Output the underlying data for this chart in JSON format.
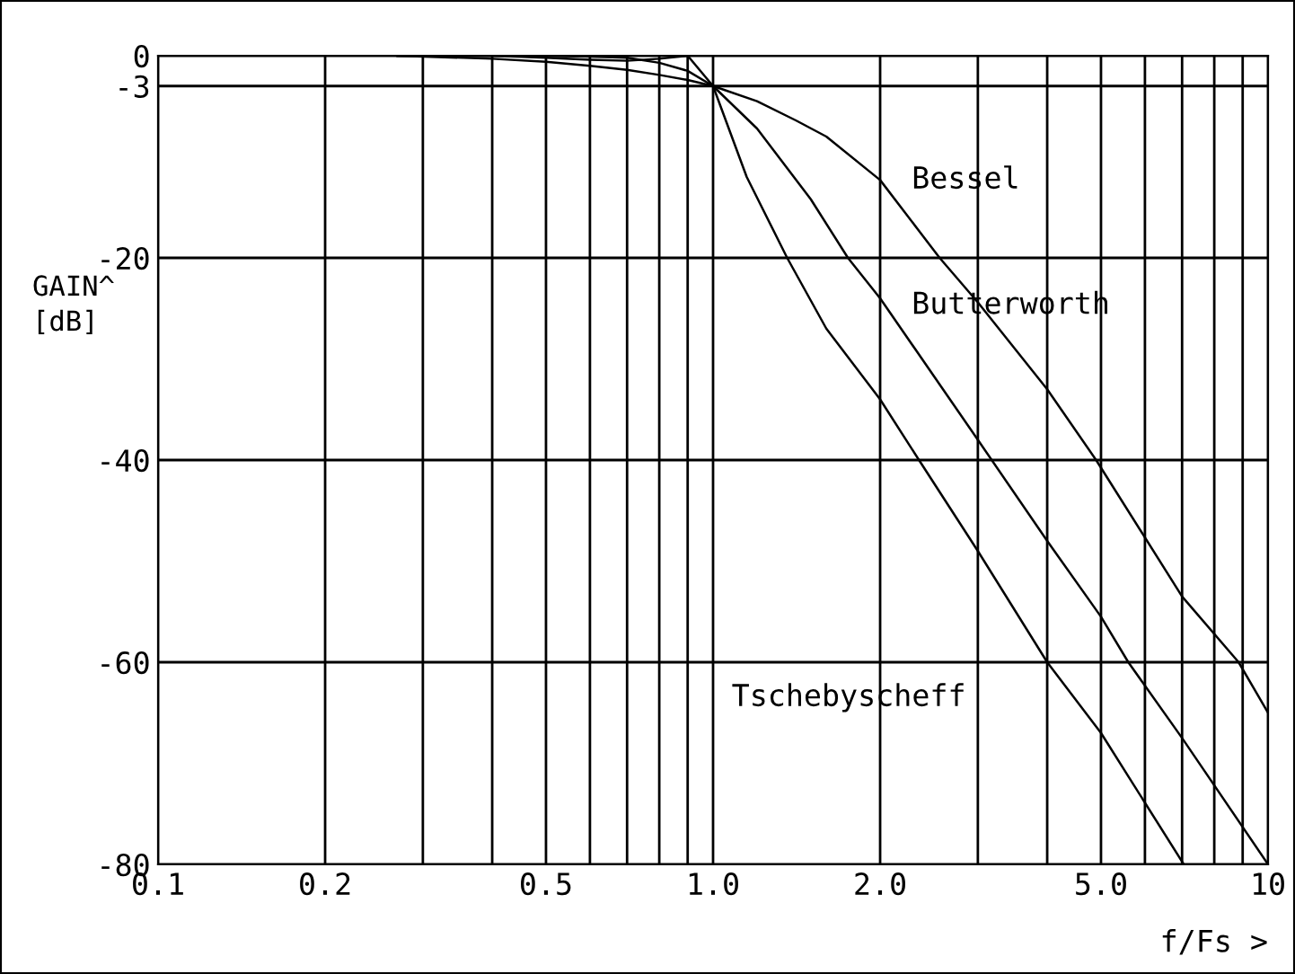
{
  "chart_data": {
    "type": "line",
    "xlabel": "f/Fs >",
    "ylabel": "GAIN^\n[dB]",
    "log": "x",
    "grid": true,
    "legend": false,
    "marker": "none",
    "line_style": "solid",
    "xlim": [
      0.1,
      10
    ],
    "xticks": [
      0.1,
      0.2,
      {
        "value": 0.3,
        "label": null
      },
      {
        "value": 0.4,
        "label": null
      },
      0.5,
      {
        "value": 0.6,
        "label": null
      },
      {
        "value": 0.7,
        "label": null
      },
      {
        "value": 0.8,
        "label": null
      },
      {
        "value": 0.9,
        "label": null
      },
      {
        "value": 1,
        "label": "1.0"
      },
      {
        "value": 2,
        "label": "2.0"
      },
      {
        "value": 3,
        "label": null
      },
      {
        "value": 4,
        "label": null
      },
      {
        "value": 5,
        "label": "5.0"
      },
      {
        "value": 6,
        "label": null
      },
      {
        "value": 7,
        "label": null
      },
      {
        "value": 8,
        "label": null
      },
      {
        "value": 9,
        "label": null
      },
      10
    ],
    "ylim": [
      -80,
      0
    ],
    "yticks": [
      0,
      -3,
      -20,
      -40,
      -60,
      -80
    ],
    "series": [
      {
        "name": "Bessel",
        "color": "#000000",
        "x": [
          0.27,
          0.4,
          0.5,
          0.6,
          0.7,
          0.8,
          0.9,
          1.0,
          1.2,
          1.41,
          1.6,
          2.0,
          2.56,
          3.0,
          4.0,
          4.9,
          7.0,
          8.85,
          10
        ],
        "values": [
          0,
          -0.3,
          -0.6,
          -1,
          -1.4,
          -1.9,
          -2.4,
          -3,
          -4.5,
          -6.4,
          -8,
          -12.3,
          -20,
          -24.4,
          -33,
          -40,
          -53.5,
          -60,
          -65
        ]
      },
      {
        "name": "Butterworth",
        "color": "#000000",
        "x": [
          0.27,
          0.5,
          0.6,
          0.7,
          0.8,
          0.9,
          1.0,
          1.2,
          1.5,
          1.75,
          2.0,
          3.0,
          4.0,
          5.0,
          5.6,
          7.0,
          10
        ],
        "values": [
          0,
          0,
          -0.1,
          -0.2,
          -0.7,
          -1.5,
          -3,
          -7.2,
          -14.2,
          -20,
          -24,
          -38,
          -48,
          -55.5,
          -60,
          -67.5,
          -80
        ]
      },
      {
        "name": "Tschebyscheff",
        "color": "#000000",
        "x": [
          0.27,
          0.4,
          0.5,
          0.6,
          0.7,
          0.8,
          0.9,
          1.0,
          1.15,
          1.36,
          1.6,
          2.0,
          2.35,
          3.0,
          4.0,
          5.0,
          7.05
        ],
        "values": [
          0,
          0,
          -0.2,
          -0.4,
          -0.5,
          -0.3,
          0,
          -3,
          -12,
          -20,
          -27,
          -34,
          -40,
          -49,
          -60,
          -67,
          -80
        ]
      }
    ]
  }
}
